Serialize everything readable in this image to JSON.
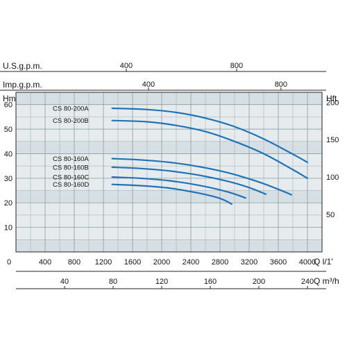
{
  "colors": {
    "plot_background": "#e6ecee",
    "grid": "#8a9aa0",
    "curve": "#1e73b8",
    "band": "#d6e0e4"
  },
  "scales": {
    "usgpm": {
      "label": "U.S.g.p.m.",
      "ticks": [
        "400",
        "800"
      ],
      "tick_values": [
        400,
        800
      ]
    },
    "impgpm": {
      "label": "Imp.g.p.m.",
      "ticks": [
        "400",
        "800"
      ],
      "tick_values": [
        400,
        800
      ]
    },
    "m3h": {
      "label": "Q m³/h",
      "ticks": [
        "40",
        "80",
        "120",
        "160",
        "200",
        "240"
      ],
      "tick_values": [
        40,
        80,
        120,
        160,
        200,
        240
      ]
    }
  },
  "chart_data": {
    "type": "line",
    "title": "",
    "xlabel": "Q l/1'",
    "ylabel": "Hm",
    "y2label": "Hft",
    "xlim": [
      0,
      4200
    ],
    "ylim": [
      0,
      65
    ],
    "x_ticks": [
      "0",
      "400",
      "800",
      "1200",
      "1600",
      "2000",
      "2400",
      "2800",
      "3200",
      "3600",
      "4000"
    ],
    "y_ticks": [
      "10",
      "20",
      "30",
      "40",
      "50",
      "60"
    ],
    "y2_ticks": [
      "50",
      "100",
      "150",
      "200"
    ],
    "y2_tick_values": [
      50,
      100,
      150,
      200
    ],
    "grid": true,
    "series": [
      {
        "name": "CS 80-200A",
        "x": [
          1320,
          1800,
          2200,
          2600,
          3000,
          3400,
          3800,
          4000
        ],
        "y": [
          58.5,
          58.0,
          56.8,
          54.5,
          51.0,
          46.0,
          39.8,
          36.5
        ]
      },
      {
        "name": "CS 80-200B",
        "x": [
          1320,
          1800,
          2200,
          2600,
          3000,
          3400,
          3800,
          4000
        ],
        "y": [
          53.5,
          53.0,
          51.5,
          49.0,
          45.0,
          40.0,
          33.5,
          30.0
        ]
      },
      {
        "name": "CS 80-160A",
        "x": [
          1320,
          1700,
          2100,
          2500,
          2900,
          3300,
          3600,
          3780
        ],
        "y": [
          38.0,
          37.5,
          36.5,
          34.8,
          32.3,
          28.8,
          25.5,
          23.3
        ]
      },
      {
        "name": "CS 80-160B",
        "x": [
          1320,
          1700,
          2100,
          2500,
          2900,
          3200,
          3430
        ],
        "y": [
          34.5,
          34.0,
          33.0,
          31.3,
          28.8,
          26.2,
          23.5
        ]
      },
      {
        "name": "CS 80-160C",
        "x": [
          1320,
          1700,
          2100,
          2500,
          2900,
          3150
        ],
        "y": [
          30.5,
          30.0,
          29.0,
          27.2,
          24.5,
          22.0
        ]
      },
      {
        "name": "CS 80-160D",
        "x": [
          1320,
          1700,
          2100,
          2500,
          2800,
          2960
        ],
        "y": [
          27.5,
          27.0,
          26.0,
          24.0,
          21.8,
          19.5
        ]
      }
    ]
  }
}
